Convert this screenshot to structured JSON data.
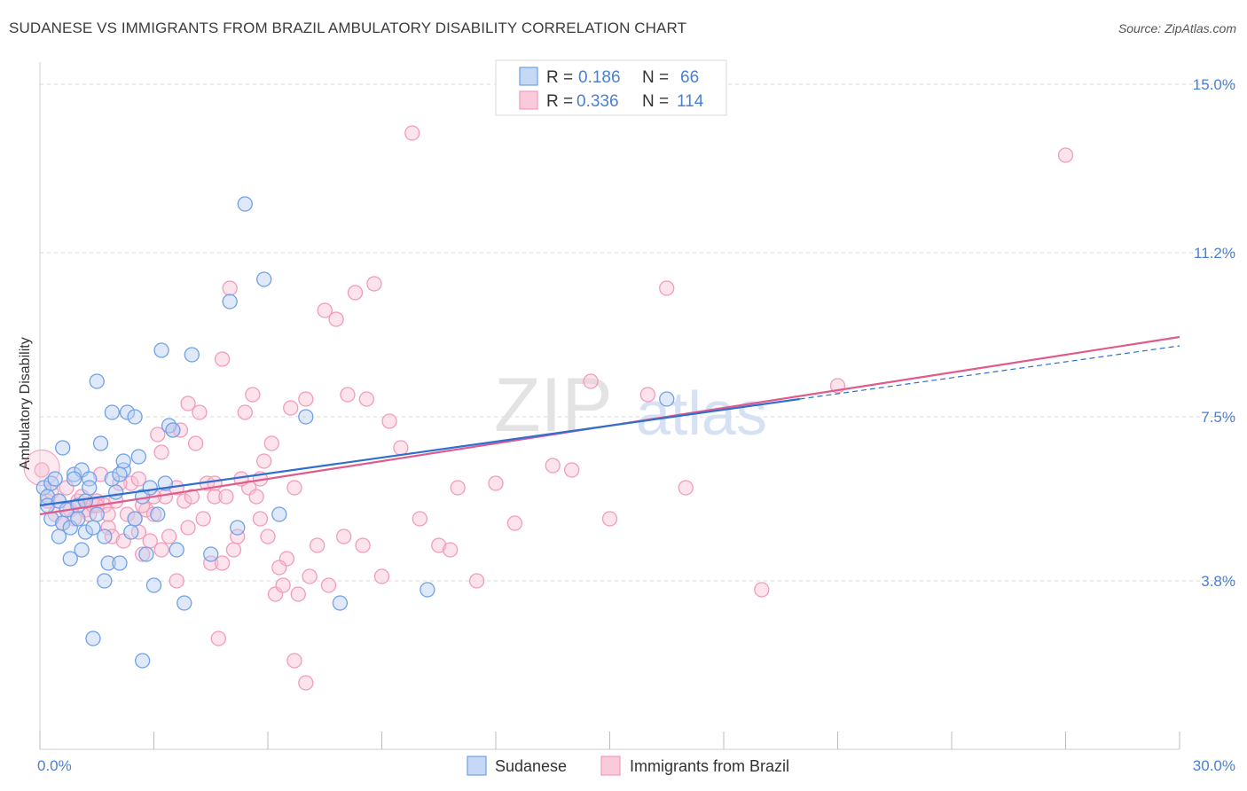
{
  "title": "SUDANESE VS IMMIGRANTS FROM BRAZIL AMBULATORY DISABILITY CORRELATION CHART",
  "source": "Source: ZipAtlas.com",
  "watermark": "ZIPatlas",
  "colors": {
    "blue": "#6fa0e8",
    "blue_line": "#2f6fd0",
    "pink": "#f29bb8",
    "pink_line": "#e05a8a",
    "tick": "#4a7fd4"
  },
  "chart_data": {
    "type": "scatter",
    "title": "SUDANESE VS IMMIGRANTS FROM BRAZIL AMBULATORY DISABILITY CORRELATION CHART",
    "xlabel": "",
    "ylabel": "Ambulatory Disability",
    "xlim": [
      0,
      30
    ],
    "ylim": [
      0,
      15.5
    ],
    "x_tick_labels": [
      {
        "value": 0,
        "label": "0.0%"
      },
      {
        "value": 30,
        "label": "30.0%"
      }
    ],
    "y_tick_labels": [
      {
        "value": 3.8,
        "label": "3.8%"
      },
      {
        "value": 7.5,
        "label": "7.5%"
      },
      {
        "value": 11.2,
        "label": "11.2%"
      },
      {
        "value": 15.0,
        "label": "15.0%"
      }
    ],
    "legend": {
      "position": "top-center",
      "rows": [
        {
          "r_label": "R =",
          "r_value": "0.186",
          "n_label": "N =",
          "n_value": "66"
        },
        {
          "r_label": "R =",
          "r_value": "0.336",
          "n_label": "N =",
          "n_value": "114"
        }
      ]
    },
    "series": [
      {
        "name": "Sudanese",
        "color": "#6fa0e8",
        "trend": {
          "x": [
            0,
            20
          ],
          "y": [
            5.5,
            7.9
          ],
          "dashed_extension": {
            "x": [
              20,
              30
            ],
            "y": [
              7.9,
              9.1
            ]
          }
        },
        "points": [
          [
            0.1,
            5.9
          ],
          [
            0.2,
            5.7
          ],
          [
            0.2,
            5.5
          ],
          [
            0.3,
            6.0
          ],
          [
            0.3,
            5.2
          ],
          [
            0.4,
            6.1
          ],
          [
            0.5,
            5.6
          ],
          [
            0.5,
            4.8
          ],
          [
            0.6,
            6.8
          ],
          [
            0.6,
            5.1
          ],
          [
            0.7,
            5.4
          ],
          [
            0.8,
            5.0
          ],
          [
            0.8,
            4.3
          ],
          [
            0.9,
            6.2
          ],
          [
            1.0,
            5.5
          ],
          [
            1.0,
            5.2
          ],
          [
            1.1,
            6.3
          ],
          [
            1.1,
            4.5
          ],
          [
            1.2,
            5.6
          ],
          [
            1.2,
            4.9
          ],
          [
            1.3,
            6.1
          ],
          [
            1.4,
            5.0
          ],
          [
            1.5,
            8.3
          ],
          [
            1.5,
            5.3
          ],
          [
            1.6,
            6.9
          ],
          [
            1.7,
            4.8
          ],
          [
            1.7,
            3.8
          ],
          [
            1.8,
            4.2
          ],
          [
            1.9,
            7.6
          ],
          [
            1.9,
            6.1
          ],
          [
            2.0,
            5.8
          ],
          [
            2.1,
            4.2
          ],
          [
            2.2,
            6.3
          ],
          [
            2.2,
            6.5
          ],
          [
            2.3,
            7.6
          ],
          [
            2.4,
            4.9
          ],
          [
            2.5,
            5.2
          ],
          [
            2.5,
            7.5
          ],
          [
            2.6,
            6.6
          ],
          [
            2.7,
            5.7
          ],
          [
            2.8,
            4.4
          ],
          [
            2.9,
            5.9
          ],
          [
            3.0,
            3.7
          ],
          [
            3.1,
            5.3
          ],
          [
            3.2,
            9.0
          ],
          [
            3.3,
            6.0
          ],
          [
            3.4,
            7.3
          ],
          [
            3.6,
            4.5
          ],
          [
            3.8,
            3.3
          ],
          [
            4.0,
            8.9
          ],
          [
            4.5,
            4.4
          ],
          [
            5.0,
            10.1
          ],
          [
            5.2,
            5.0
          ],
          [
            5.4,
            12.3
          ],
          [
            5.9,
            10.6
          ],
          [
            6.3,
            5.3
          ],
          [
            7.0,
            7.5
          ],
          [
            7.9,
            3.3
          ],
          [
            10.2,
            3.6
          ],
          [
            16.5,
            7.9
          ],
          [
            1.4,
            2.5
          ],
          [
            2.7,
            2.0
          ],
          [
            0.9,
            6.1
          ],
          [
            2.1,
            6.2
          ],
          [
            3.5,
            7.2
          ],
          [
            1.3,
            5.9
          ]
        ]
      },
      {
        "name": "Immigrants from Brazil",
        "color": "#f29bb8",
        "trend": {
          "x": [
            0,
            30
          ],
          "y": [
            5.3,
            9.3
          ]
        },
        "points": [
          [
            0.05,
            6.3
          ],
          [
            0.2,
            5.6
          ],
          [
            0.3,
            5.8
          ],
          [
            0.4,
            5.3
          ],
          [
            0.5,
            5.6
          ],
          [
            0.6,
            5.1
          ],
          [
            0.7,
            5.9
          ],
          [
            0.8,
            5.4
          ],
          [
            0.9,
            5.2
          ],
          [
            1.0,
            5.6
          ],
          [
            1.1,
            5.7
          ],
          [
            1.2,
            5.4
          ],
          [
            1.3,
            5.3
          ],
          [
            1.4,
            5.5
          ],
          [
            1.5,
            5.6
          ],
          [
            1.6,
            6.2
          ],
          [
            1.7,
            5.5
          ],
          [
            1.8,
            5.0
          ],
          [
            1.9,
            4.8
          ],
          [
            2.0,
            5.6
          ],
          [
            2.2,
            4.7
          ],
          [
            2.3,
            5.3
          ],
          [
            2.4,
            6.0
          ],
          [
            2.5,
            5.2
          ],
          [
            2.6,
            4.9
          ],
          [
            2.7,
            4.4
          ],
          [
            2.8,
            5.4
          ],
          [
            2.9,
            4.7
          ],
          [
            3.0,
            5.3
          ],
          [
            3.1,
            7.1
          ],
          [
            3.2,
            4.5
          ],
          [
            3.3,
            5.7
          ],
          [
            3.4,
            4.8
          ],
          [
            3.5,
            7.2
          ],
          [
            3.6,
            5.9
          ],
          [
            3.7,
            7.2
          ],
          [
            3.8,
            5.6
          ],
          [
            3.9,
            7.8
          ],
          [
            4.0,
            5.7
          ],
          [
            4.1,
            6.9
          ],
          [
            4.2,
            7.6
          ],
          [
            4.3,
            5.2
          ],
          [
            4.4,
            6.0
          ],
          [
            4.5,
            4.2
          ],
          [
            4.6,
            5.7
          ],
          [
            4.8,
            8.8
          ],
          [
            5.0,
            10.4
          ],
          [
            5.1,
            4.5
          ],
          [
            5.2,
            4.8
          ],
          [
            5.4,
            7.6
          ],
          [
            5.5,
            5.9
          ],
          [
            5.6,
            8.0
          ],
          [
            5.7,
            5.7
          ],
          [
            5.8,
            6.1
          ],
          [
            5.9,
            6.5
          ],
          [
            6.0,
            4.8
          ],
          [
            6.1,
            6.9
          ],
          [
            6.2,
            3.5
          ],
          [
            6.4,
            3.7
          ],
          [
            6.5,
            4.3
          ],
          [
            6.6,
            7.7
          ],
          [
            6.7,
            5.9
          ],
          [
            6.8,
            3.5
          ],
          [
            7.0,
            7.9
          ],
          [
            7.1,
            3.9
          ],
          [
            7.3,
            4.6
          ],
          [
            7.5,
            9.9
          ],
          [
            7.6,
            3.7
          ],
          [
            7.8,
            9.7
          ],
          [
            8.0,
            4.8
          ],
          [
            8.1,
            8.0
          ],
          [
            8.3,
            10.3
          ],
          [
            8.5,
            4.6
          ],
          [
            8.6,
            7.9
          ],
          [
            8.8,
            10.5
          ],
          [
            9.0,
            3.9
          ],
          [
            9.2,
            7.4
          ],
          [
            9.5,
            6.8
          ],
          [
            9.8,
            13.9
          ],
          [
            10.0,
            5.2
          ],
          [
            10.5,
            4.6
          ],
          [
            10.8,
            4.5
          ],
          [
            11.0,
            5.9
          ],
          [
            11.5,
            3.8
          ],
          [
            12.0,
            6.0
          ],
          [
            12.5,
            5.1
          ],
          [
            13.5,
            6.4
          ],
          [
            14.0,
            6.3
          ],
          [
            14.5,
            8.3
          ],
          [
            15.0,
            5.2
          ],
          [
            16.0,
            8.0
          ],
          [
            16.5,
            10.4
          ],
          [
            17.0,
            5.9
          ],
          [
            19.0,
            3.6
          ],
          [
            21.0,
            8.2
          ],
          [
            27.0,
            13.4
          ],
          [
            4.7,
            2.5
          ],
          [
            6.7,
            2.0
          ],
          [
            7.0,
            1.5
          ],
          [
            3.6,
            3.8
          ],
          [
            2.1,
            6.0
          ],
          [
            1.8,
            5.3
          ],
          [
            2.6,
            6.1
          ],
          [
            4.6,
            6.0
          ],
          [
            5.3,
            6.1
          ],
          [
            3.9,
            5.0
          ],
          [
            3.2,
            6.7
          ],
          [
            4.9,
            5.7
          ],
          [
            1.5,
            5.5
          ],
          [
            2.7,
            5.5
          ],
          [
            3.0,
            5.7
          ],
          [
            4.8,
            4.2
          ],
          [
            5.8,
            5.2
          ],
          [
            6.3,
            4.1
          ]
        ]
      }
    ]
  }
}
